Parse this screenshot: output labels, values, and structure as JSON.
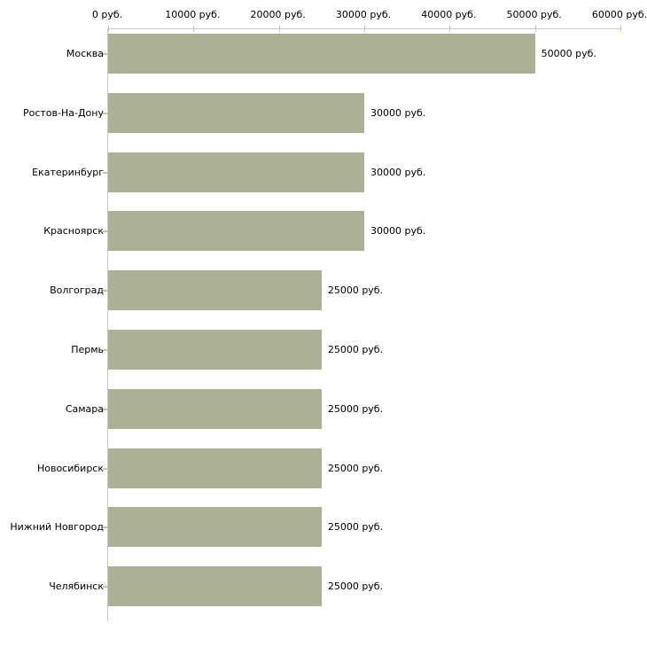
{
  "chart_data": {
    "type": "bar",
    "orientation": "horizontal",
    "title": "",
    "xlabel": "",
    "ylabel": "",
    "categories": [
      "Москва",
      "Ростов-На-Дону",
      "Екатеринбург",
      "Красноярск",
      "Волгоград",
      "Пермь",
      "Самара",
      "Новосибирск",
      "Нижний Новгород",
      "Челябинск"
    ],
    "values": [
      50000,
      30000,
      30000,
      30000,
      25000,
      25000,
      25000,
      25000,
      25000,
      25000
    ],
    "bar_labels": [
      "50000 руб.",
      "30000 руб.",
      "30000 руб.",
      "30000 руб.",
      "25000 руб.",
      "25000 руб.",
      "25000 руб.",
      "25000 руб.",
      "25000 руб.",
      "25000 руб."
    ],
    "x_ticks": [
      "0 руб.",
      "10000 руб.",
      "20000 руб.",
      "30000 руб.",
      "40000 руб.",
      "50000 руб.",
      "60000 руб."
    ],
    "xlim": [
      0,
      60000
    ],
    "grid": false,
    "legend": false,
    "bar_color": "#acb196",
    "axis_color": "#cbcbcb",
    "tick_color": "#c6c99b",
    "text_color": "#000000",
    "background_color": "#ffffff"
  }
}
